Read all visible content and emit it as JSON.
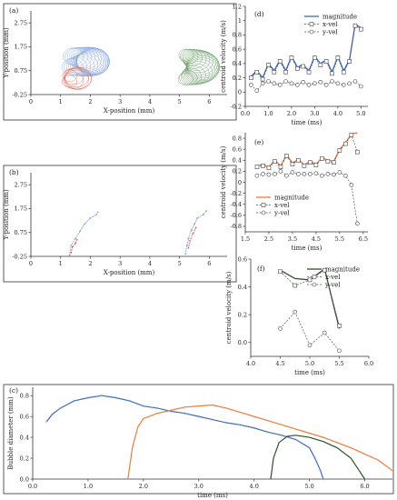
{
  "panels": {
    "a": {
      "label": "(a)",
      "xlabel": "X-position (mm)",
      "ylabel": "Y-position (mm)",
      "xticks": [
        "0",
        "1",
        "2",
        "3",
        "4",
        "5",
        "6"
      ],
      "yticks": [
        "-0.25",
        "0.75",
        "1.75",
        "2.75"
      ],
      "xlim": [
        0,
        6.6
      ],
      "ylim": [
        -0.25,
        3.25
      ]
    },
    "b": {
      "label": "(b)",
      "xlabel": "X-position (mm)",
      "ylabel": "Y-position (mm)",
      "xticks": [
        "0",
        "1",
        "2",
        "3",
        "4",
        "5",
        "6"
      ],
      "yticks": [
        "-0.25",
        "0.75",
        "1.75",
        "2.75"
      ],
      "xlim": [
        0,
        6.6
      ],
      "ylim": [
        -0.25,
        3.25
      ]
    },
    "c": {
      "label": "(c)"
    },
    "d": {
      "label": "(d)"
    },
    "e": {
      "label": "(e)"
    },
    "f": {
      "label": "(f)"
    }
  },
  "colors": {
    "blue": "#3e6ab9",
    "orange": "#ef7a3a",
    "green": "#2f4f2c",
    "gray": "#555555",
    "circle_blue": "#88a6dc",
    "circle_red": "#e06a5a",
    "circle_green": "#6a9a66"
  },
  "chart_data": [
    {
      "id": "d",
      "type": "line",
      "xlabel": "time (ms)",
      "ylabel": "centroid velocity (m/s)",
      "xlim": [
        0,
        5.3
      ],
      "ylim": [
        -0.2,
        1.2
      ],
      "xticks": [
        0.0,
        1.0,
        2.0,
        3.0,
        4.0,
        5.0
      ],
      "yticks": [
        -0.2,
        0.0,
        0.2,
        0.4,
        0.6,
        0.8,
        1.0,
        1.2
      ],
      "xtick_labels": [
        "0.0",
        "1.0",
        "2.0",
        "3.0",
        "4.0",
        "5.0"
      ],
      "ytick_labels": [
        "-0.2",
        "0",
        "0.2",
        "0.4",
        "0.6",
        "0.8",
        "1",
        "1.2"
      ],
      "legend": "top-right",
      "x": [
        0.25,
        0.5,
        0.75,
        1.0,
        1.25,
        1.5,
        1.75,
        2.0,
        2.25,
        2.5,
        2.75,
        3.0,
        3.25,
        3.5,
        3.75,
        4.0,
        4.25,
        4.5,
        4.75,
        5.0
      ],
      "series": [
        {
          "name": "magnitude",
          "color": "blue",
          "style": "solid",
          "marker": "none",
          "values": [
            0.22,
            0.3,
            0.2,
            0.4,
            0.3,
            0.45,
            0.3,
            0.5,
            0.35,
            0.38,
            0.3,
            0.5,
            0.4,
            0.45,
            0.28,
            0.5,
            0.3,
            0.45,
            0.95,
            0.9
          ]
        },
        {
          "name": "x-vel",
          "color": "gray",
          "style": "dashed",
          "marker": "square",
          "values": [
            0.2,
            0.28,
            0.18,
            0.38,
            0.28,
            0.43,
            0.28,
            0.48,
            0.33,
            0.36,
            0.28,
            0.48,
            0.38,
            0.43,
            0.26,
            0.48,
            0.28,
            0.43,
            0.93,
            0.88
          ]
        },
        {
          "name": "y-vel",
          "color": "gray",
          "style": "dashed",
          "marker": "circle",
          "values": [
            0.1,
            0.02,
            0.12,
            0.15,
            0.12,
            0.1,
            0.15,
            0.12,
            0.1,
            0.14,
            0.1,
            0.12,
            0.14,
            0.1,
            0.15,
            0.12,
            0.1,
            0.12,
            0.15,
            0.08
          ]
        }
      ]
    },
    {
      "id": "e",
      "type": "line",
      "xlabel": "time (ms)",
      "ylabel": "centroid velocity (m/s)",
      "xlim": [
        1.5,
        6.7
      ],
      "ylim": [
        -0.9,
        0.9
      ],
      "xticks": [
        1.5,
        2.5,
        3.5,
        4.5,
        5.5,
        6.5
      ],
      "yticks": [
        -0.8,
        -0.6,
        -0.4,
        -0.2,
        0.0,
        0.2,
        0.4,
        0.6,
        0.8
      ],
      "xtick_labels": [
        "1.5",
        "2.5",
        "3.5",
        "4.5",
        "5.5",
        "6.5"
      ],
      "ytick_labels": [
        "-0.8",
        "-0.6",
        "-0.4",
        "-0.2",
        "0",
        "0.2",
        "0.4",
        "0.6",
        "0.8"
      ],
      "legend": "bottom-left",
      "x": [
        2.0,
        2.25,
        2.5,
        2.75,
        3.0,
        3.25,
        3.5,
        3.75,
        4.0,
        4.25,
        4.5,
        4.75,
        5.0,
        5.25,
        5.5,
        5.75,
        6.0,
        6.25
      ],
      "series": [
        {
          "name": "magnitude",
          "color": "orange",
          "style": "solid",
          "marker": "none",
          "values": [
            0.3,
            0.32,
            0.28,
            0.4,
            0.3,
            0.5,
            0.35,
            0.42,
            0.32,
            0.38,
            0.33,
            0.45,
            0.4,
            0.38,
            0.6,
            0.72,
            0.88,
            0.9
          ]
        },
        {
          "name": "x-vel",
          "color": "gray",
          "style": "dashed",
          "marker": "square",
          "values": [
            0.28,
            0.3,
            0.26,
            0.38,
            0.28,
            0.48,
            0.33,
            0.4,
            0.3,
            0.36,
            0.31,
            0.43,
            0.38,
            0.36,
            0.58,
            0.7,
            0.86,
            0.55
          ]
        },
        {
          "name": "y-vel",
          "color": "gray",
          "style": "dashed",
          "marker": "circle",
          "values": [
            0.12,
            0.15,
            0.14,
            0.15,
            0.2,
            0.12,
            0.18,
            0.15,
            0.15,
            0.15,
            0.16,
            0.12,
            0.15,
            0.14,
            0.18,
            0.12,
            -0.05,
            -0.75
          ]
        }
      ]
    },
    {
      "id": "f",
      "type": "line",
      "xlabel": "time (ms)",
      "ylabel": "centroid velocity (m/s)",
      "xlim": [
        4.0,
        6.0
      ],
      "ylim": [
        -0.1,
        0.6
      ],
      "xticks": [
        4.0,
        4.5,
        5.0,
        5.5,
        6.0
      ],
      "yticks": [
        0.0,
        0.2,
        0.4,
        0.6
      ],
      "xtick_labels": [
        "4.0",
        "4.5",
        "5.0",
        "5.5",
        "6.0"
      ],
      "ytick_labels": [
        "0.0",
        "0.2",
        "0.4",
        "0.6"
      ],
      "legend": "top-right",
      "x": [
        4.5,
        4.75,
        5.0,
        5.25,
        5.5
      ],
      "series": [
        {
          "name": "magnitude",
          "color": "green",
          "style": "solid",
          "marker": "none",
          "values": [
            0.52,
            0.46,
            0.45,
            0.53,
            0.1
          ]
        },
        {
          "name": "x-vel",
          "color": "gray",
          "style": "dashed",
          "marker": "square",
          "values": [
            0.51,
            0.41,
            0.45,
            0.52,
            0.12
          ]
        },
        {
          "name": "y-vel",
          "color": "gray",
          "style": "dashed",
          "marker": "circle",
          "values": [
            0.1,
            0.22,
            -0.02,
            0.07,
            -0.06
          ]
        }
      ]
    },
    {
      "id": "c",
      "type": "line",
      "xlabel": "time (ms)",
      "ylabel": "Bubble diameter (mm)",
      "xlim": [
        0,
        6.5
      ],
      "ylim": [
        0,
        0.88
      ],
      "xticks": [
        0.0,
        1.0,
        2.0,
        3.0,
        4.0,
        5.0,
        6.0
      ],
      "yticks": [
        0.0,
        0.2,
        0.4,
        0.6,
        0.8
      ],
      "xtick_labels": [
        "0.0",
        "1.0",
        "2.0",
        "3.0",
        "4.0",
        "5.0",
        "6.0"
      ],
      "ytick_labels": [
        "0.0",
        "0.2",
        "0.4",
        "0.6",
        "0.8"
      ],
      "series": [
        {
          "color": "blue",
          "x": [
            0.25,
            0.35,
            0.5,
            0.75,
            1.0,
            1.25,
            1.5,
            1.75,
            2.0,
            2.25,
            2.5,
            2.75,
            3.0,
            3.25,
            3.5,
            3.75,
            4.0,
            4.25,
            4.5,
            4.75,
            5.0,
            5.1,
            5.2,
            5.25
          ],
          "values": [
            0.55,
            0.62,
            0.68,
            0.75,
            0.78,
            0.8,
            0.78,
            0.75,
            0.7,
            0.68,
            0.65,
            0.63,
            0.6,
            0.57,
            0.54,
            0.52,
            0.49,
            0.45,
            0.42,
            0.38,
            0.3,
            0.2,
            0.08,
            0.0
          ]
        },
        {
          "color": "orange",
          "x": [
            1.72,
            1.8,
            1.9,
            2.0,
            2.25,
            2.5,
            2.75,
            3.0,
            3.25,
            3.5,
            3.75,
            4.0,
            4.25,
            4.5,
            4.75,
            5.0,
            5.25,
            5.5,
            5.75,
            6.0,
            6.25,
            6.5
          ],
          "values": [
            0.0,
            0.3,
            0.5,
            0.58,
            0.63,
            0.66,
            0.69,
            0.7,
            0.71,
            0.68,
            0.64,
            0.6,
            0.56,
            0.52,
            0.48,
            0.44,
            0.4,
            0.35,
            0.3,
            0.24,
            0.18,
            0.08
          ]
        },
        {
          "color": "green",
          "x": [
            4.3,
            4.35,
            4.45,
            4.6,
            4.75,
            5.0,
            5.25,
            5.5,
            5.75,
            5.9,
            6.0
          ],
          "values": [
            0.0,
            0.2,
            0.35,
            0.41,
            0.42,
            0.4,
            0.36,
            0.3,
            0.2,
            0.08,
            0.0
          ]
        }
      ]
    }
  ]
}
